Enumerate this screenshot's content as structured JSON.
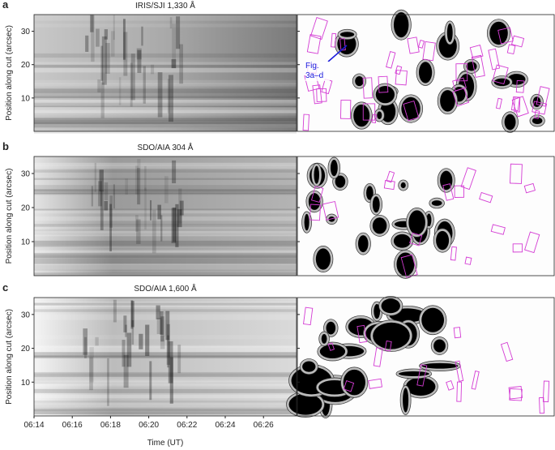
{
  "chart_data": [
    {
      "type": "image",
      "panel_label": "a",
      "title": "IRIS/SJI 1,330 Å",
      "ylabel": "Position along cut (arcsec)",
      "ylim": [
        0,
        35
      ],
      "yticks": [
        10,
        20,
        30
      ],
      "annotation": "Fig. 3a–d"
    },
    {
      "type": "image",
      "panel_label": "b",
      "title": "SDO/AIA 304 Å",
      "ylabel": "Position along cut (arcsec)",
      "ylim": [
        0,
        35
      ],
      "yticks": [
        10,
        20,
        30
      ]
    },
    {
      "type": "image",
      "panel_label": "c",
      "title": "SDO/AIA 1,600 Å",
      "ylabel": "Position along cut (arcsec)",
      "ylim": [
        0,
        35
      ],
      "yticks": [
        10,
        20,
        30
      ],
      "xlabel": "Time (UT)",
      "xticks": [
        "06:14",
        "06:16",
        "06:18",
        "06:20",
        "06:22",
        "06:24",
        "06:26"
      ]
    }
  ]
}
